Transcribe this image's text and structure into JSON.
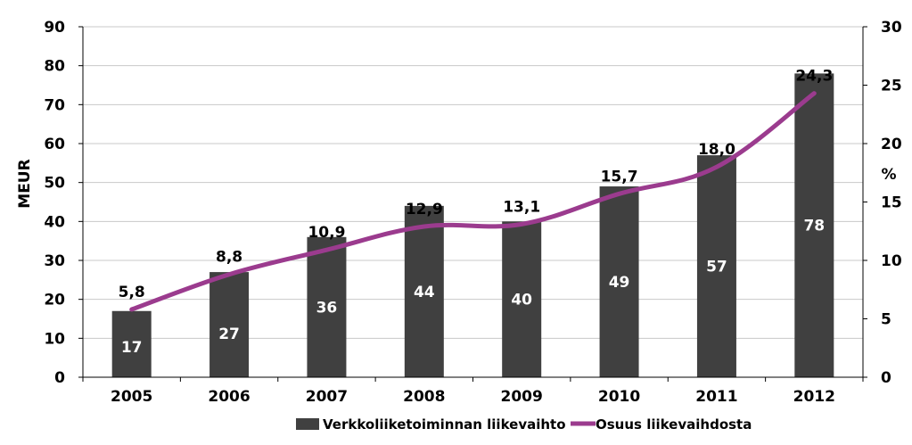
{
  "chart_data": {
    "type": "bar",
    "categories": [
      "2005",
      "2006",
      "2007",
      "2008",
      "2009",
      "2010",
      "2011",
      "2012"
    ],
    "series": [
      {
        "name": "Verkkoliiketoiminnan liikevaihto",
        "type": "bar",
        "axis": "left",
        "values": [
          17,
          27,
          36,
          44,
          40,
          49,
          57,
          78
        ],
        "labels": [
          "17",
          "27",
          "36",
          "44",
          "40",
          "49",
          "57",
          "78"
        ],
        "color": "#404040"
      },
      {
        "name": "Osuus liikevaihdosta",
        "type": "line",
        "axis": "right",
        "values": [
          5.8,
          8.8,
          10.9,
          12.9,
          13.1,
          15.7,
          18.0,
          24.3
        ],
        "labels": [
          "5,8",
          "8,8",
          "10,9",
          "12,9",
          "13,1",
          "15,7",
          "18,0",
          "24,3"
        ],
        "color": "#9b3b8e"
      }
    ],
    "ylabel": "MEUR",
    "ylabel_right": "%",
    "ylim": [
      0,
      90
    ],
    "ylim_right": [
      0,
      30
    ],
    "yticks": [
      "0",
      "10",
      "20",
      "30",
      "40",
      "50",
      "60",
      "70",
      "80",
      "90"
    ],
    "yticks_right": [
      "0",
      "5",
      "10",
      "15",
      "20",
      "25",
      "30"
    ],
    "grid": true,
    "legend_position": "bottom"
  }
}
